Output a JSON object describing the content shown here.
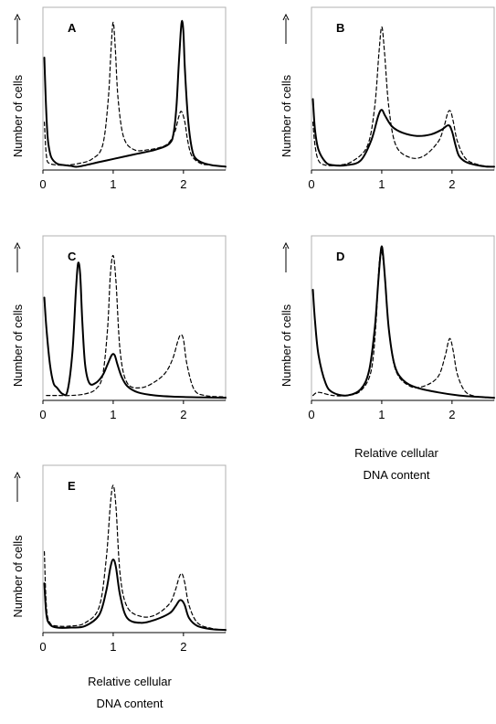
{
  "chart_data": [
    {
      "type": "line",
      "panel": "A",
      "ylabel": "Number of cells",
      "xlim": [
        0,
        2.6
      ],
      "ylim": [
        0,
        1.0
      ],
      "x_ticks": [
        "0",
        "1",
        "2"
      ],
      "series": [
        {
          "style": "solid",
          "x": [
            0.02,
            0.04,
            0.06,
            0.08,
            0.12,
            0.2,
            0.3,
            0.4,
            0.5,
            0.8,
            1.0,
            1.3,
            1.6,
            1.8,
            1.86,
            1.9,
            1.93,
            1.96,
            1.98,
            2.0,
            2.02,
            2.06,
            2.1,
            2.15,
            2.25,
            2.4,
            2.6
          ],
          "y": [
            0.72,
            0.45,
            0.25,
            0.15,
            0.07,
            0.03,
            0.02,
            0.015,
            0.01,
            0.04,
            0.06,
            0.09,
            0.12,
            0.16,
            0.23,
            0.4,
            0.65,
            0.88,
            0.96,
            0.88,
            0.65,
            0.35,
            0.18,
            0.08,
            0.04,
            0.02,
            0.01
          ]
        },
        {
          "style": "dashed",
          "x": [
            0.02,
            0.05,
            0.1,
            0.3,
            0.5,
            0.7,
            0.85,
            0.93,
            0.97,
            1.0,
            1.03,
            1.07,
            1.15,
            1.3,
            1.5,
            1.7,
            1.8,
            1.88,
            1.93,
            1.97,
            2.02,
            2.06,
            2.12,
            2.25,
            2.4,
            2.6
          ],
          "y": [
            0.3,
            0.08,
            0.03,
            0.02,
            0.03,
            0.06,
            0.15,
            0.45,
            0.78,
            0.95,
            0.78,
            0.45,
            0.2,
            0.12,
            0.12,
            0.14,
            0.17,
            0.24,
            0.33,
            0.37,
            0.3,
            0.18,
            0.08,
            0.03,
            0.02,
            0.01
          ]
        }
      ]
    },
    {
      "type": "line",
      "panel": "B",
      "ylabel": "Number of cells",
      "xlim": [
        0,
        2.6
      ],
      "ylim": [
        0,
        1.0
      ],
      "x_ticks": [
        "0",
        "1",
        "2"
      ],
      "series": [
        {
          "style": "solid",
          "x": [
            0.02,
            0.05,
            0.1,
            0.2,
            0.3,
            0.5,
            0.7,
            0.85,
            0.95,
            1.0,
            1.05,
            1.15,
            1.3,
            1.5,
            1.7,
            1.85,
            1.95,
            2.0,
            2.05,
            2.1,
            2.2,
            2.35,
            2.5,
            2.6
          ],
          "y": [
            0.45,
            0.25,
            0.12,
            0.04,
            0.02,
            0.02,
            0.05,
            0.18,
            0.34,
            0.38,
            0.34,
            0.27,
            0.23,
            0.21,
            0.22,
            0.25,
            0.28,
            0.24,
            0.15,
            0.08,
            0.04,
            0.02,
            0.01,
            0.01
          ]
        },
        {
          "style": "dashed",
          "x": [
            0.02,
            0.05,
            0.1,
            0.2,
            0.4,
            0.6,
            0.8,
            0.9,
            0.96,
            1.0,
            1.04,
            1.1,
            1.2,
            1.4,
            1.6,
            1.8,
            1.88,
            1.94,
            1.98,
            2.02,
            2.08,
            2.2,
            2.4,
            2.6
          ],
          "y": [
            0.3,
            0.15,
            0.05,
            0.02,
            0.02,
            0.05,
            0.15,
            0.4,
            0.75,
            0.92,
            0.75,
            0.4,
            0.15,
            0.07,
            0.08,
            0.17,
            0.26,
            0.36,
            0.37,
            0.3,
            0.17,
            0.06,
            0.02,
            0.01
          ]
        }
      ]
    },
    {
      "type": "line",
      "panel": "C",
      "ylabel": "Number of cells",
      "xlim": [
        0,
        2.6
      ],
      "ylim": [
        0,
        1.0
      ],
      "x_ticks": [
        "0",
        "1",
        "2"
      ],
      "series": [
        {
          "style": "solid",
          "x": [
            0.02,
            0.05,
            0.1,
            0.15,
            0.2,
            0.28,
            0.35,
            0.42,
            0.47,
            0.5,
            0.53,
            0.56,
            0.6,
            0.66,
            0.75,
            0.85,
            0.92,
            0.98,
            1.02,
            1.06,
            1.12,
            1.2,
            1.35,
            1.6,
            2.0,
            2.6
          ],
          "y": [
            0.65,
            0.45,
            0.22,
            0.1,
            0.07,
            0.03,
            0.05,
            0.3,
            0.7,
            0.87,
            0.8,
            0.5,
            0.22,
            0.1,
            0.1,
            0.15,
            0.22,
            0.28,
            0.28,
            0.22,
            0.14,
            0.08,
            0.04,
            0.02,
            0.01,
            0.005
          ]
        },
        {
          "style": "dashed",
          "x": [
            0.05,
            0.2,
            0.4,
            0.6,
            0.75,
            0.85,
            0.92,
            0.96,
            1.0,
            1.04,
            1.1,
            1.2,
            1.4,
            1.6,
            1.75,
            1.85,
            1.92,
            1.96,
            2.0,
            2.05,
            2.15,
            2.3,
            2.6
          ],
          "y": [
            0.02,
            0.02,
            0.02,
            0.03,
            0.06,
            0.15,
            0.45,
            0.8,
            0.92,
            0.75,
            0.3,
            0.1,
            0.07,
            0.11,
            0.17,
            0.26,
            0.37,
            0.41,
            0.38,
            0.22,
            0.06,
            0.02,
            0.01
          ]
        }
      ]
    },
    {
      "type": "line",
      "panel": "D",
      "ylabel": "Number of cells",
      "xlim": [
        0,
        2.6
      ],
      "ylim": [
        0,
        1.0
      ],
      "x_ticks": [
        "0",
        "1",
        "2"
      ],
      "series": [
        {
          "style": "solid",
          "x": [
            0.02,
            0.05,
            0.1,
            0.2,
            0.3,
            0.5,
            0.7,
            0.82,
            0.9,
            0.95,
            0.98,
            1.0,
            1.02,
            1.05,
            1.1,
            1.18,
            1.3,
            1.5,
            1.8,
            2.1,
            2.4,
            2.6
          ],
          "y": [
            0.7,
            0.5,
            0.28,
            0.1,
            0.04,
            0.02,
            0.06,
            0.18,
            0.45,
            0.75,
            0.92,
            0.98,
            0.92,
            0.75,
            0.45,
            0.22,
            0.12,
            0.07,
            0.04,
            0.02,
            0.01,
            0.005
          ]
        },
        {
          "style": "dashed",
          "x": [
            0.02,
            0.1,
            0.3,
            0.5,
            0.7,
            0.85,
            0.92,
            0.96,
            1.0,
            1.04,
            1.1,
            1.2,
            1.4,
            1.6,
            1.8,
            1.9,
            1.95,
            1.98,
            2.02,
            2.08,
            2.2,
            2.4,
            2.6
          ],
          "y": [
            0.02,
            0.04,
            0.02,
            0.02,
            0.05,
            0.18,
            0.5,
            0.85,
            0.94,
            0.8,
            0.45,
            0.18,
            0.08,
            0.08,
            0.14,
            0.27,
            0.37,
            0.38,
            0.3,
            0.15,
            0.04,
            0.01,
            0.005
          ]
        }
      ]
    },
    {
      "type": "line",
      "panel": "E",
      "ylabel": "Number of cells",
      "xlim": [
        0,
        2.6
      ],
      "ylim": [
        0,
        1.0
      ],
      "x_ticks": [
        "0",
        "1",
        "2"
      ],
      "series": [
        {
          "style": "solid",
          "x": [
            0.02,
            0.05,
            0.1,
            0.2,
            0.4,
            0.6,
            0.8,
            0.9,
            0.96,
            1.0,
            1.04,
            1.1,
            1.2,
            1.4,
            1.6,
            1.8,
            1.88,
            1.94,
            1.98,
            2.02,
            2.08,
            2.2,
            2.4,
            2.6
          ],
          "y": [
            0.3,
            0.1,
            0.04,
            0.02,
            0.02,
            0.03,
            0.1,
            0.25,
            0.4,
            0.45,
            0.4,
            0.22,
            0.08,
            0.05,
            0.07,
            0.11,
            0.15,
            0.19,
            0.19,
            0.16,
            0.08,
            0.03,
            0.01,
            0.005
          ]
        },
        {
          "style": "dashed",
          "x": [
            0.02,
            0.05,
            0.1,
            0.2,
            0.4,
            0.6,
            0.8,
            0.9,
            0.96,
            1.0,
            1.04,
            1.1,
            1.2,
            1.4,
            1.6,
            1.8,
            1.88,
            1.94,
            1.98,
            2.02,
            2.08,
            2.2,
            2.4,
            2.6
          ],
          "y": [
            0.5,
            0.15,
            0.05,
            0.03,
            0.03,
            0.05,
            0.15,
            0.45,
            0.8,
            0.92,
            0.78,
            0.35,
            0.15,
            0.09,
            0.1,
            0.17,
            0.25,
            0.34,
            0.36,
            0.3,
            0.16,
            0.05,
            0.015,
            0.005
          ]
        }
      ]
    }
  ],
  "x_axis_title": [
    "Relative cellular",
    "DNA content"
  ]
}
